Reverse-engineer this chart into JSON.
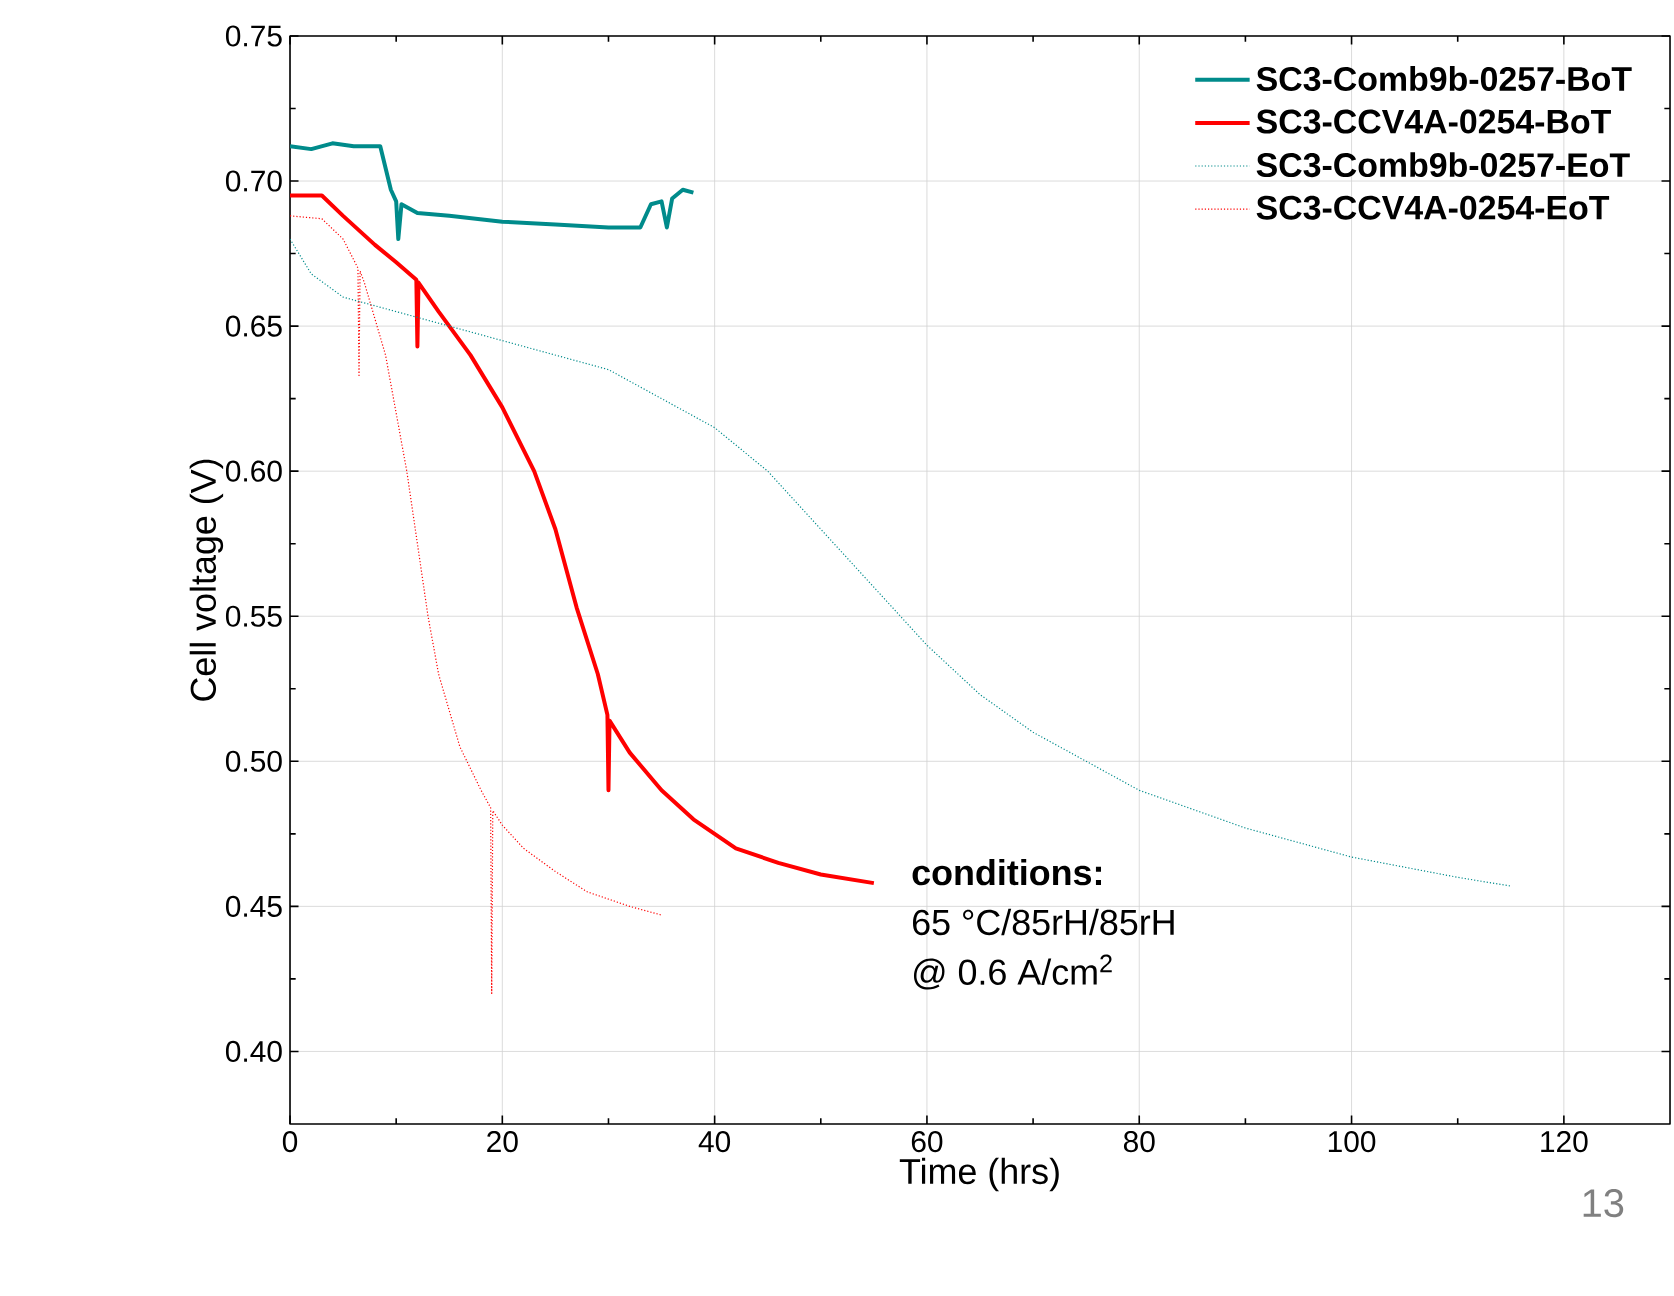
{
  "chart_data": {
    "type": "line",
    "xlabel": "Time (hrs)",
    "ylabel": "Cell voltage (V)",
    "xlim": [
      0,
      130
    ],
    "ylim": [
      0.375,
      0.75
    ],
    "xticks": [
      0,
      20,
      40,
      60,
      80,
      100,
      120
    ],
    "yticks": [
      {
        "value": 0.4,
        "label": "0.40"
      },
      {
        "value": 0.45,
        "label": "0.45"
      },
      {
        "value": 0.5,
        "label": "0.50"
      },
      {
        "value": 0.55,
        "label": "0.55"
      },
      {
        "value": 0.6,
        "label": "0.60"
      },
      {
        "value": 0.65,
        "label": "0.65"
      },
      {
        "value": 0.7,
        "label": "0.70"
      },
      {
        "value": 0.75,
        "label": "0.75"
      }
    ],
    "grid": true,
    "legend": "top right",
    "marker": "none",
    "series": [
      {
        "name": "SC3-Comb9b-0257-BoT",
        "color": "#008b8b",
        "line_style": "solid",
        "x": [
          0,
          2,
          4,
          6,
          8.5,
          9.5,
          10,
          10.2,
          10.5,
          12,
          15,
          20,
          25,
          30,
          33,
          34,
          35,
          35.5,
          36,
          37,
          38
        ],
        "values": [
          0.712,
          0.711,
          0.713,
          0.712,
          0.712,
          0.697,
          0.693,
          0.68,
          0.692,
          0.689,
          0.688,
          0.686,
          0.685,
          0.684,
          0.684,
          0.692,
          0.693,
          0.684,
          0.694,
          0.697,
          0.696
        ]
      },
      {
        "name": "SC3-CCV4A-0254-BoT",
        "color": "#ff0000",
        "line_style": "solid",
        "x": [
          0,
          3,
          5,
          8,
          10,
          11.9,
          12,
          12.1,
          14,
          17,
          20,
          23,
          25,
          27,
          29,
          29.9,
          30,
          30.1,
          32,
          35,
          38,
          42,
          46,
          50,
          55
        ],
        "values": [
          0.695,
          0.695,
          0.688,
          0.678,
          0.672,
          0.666,
          0.643,
          0.665,
          0.655,
          0.64,
          0.622,
          0.6,
          0.58,
          0.553,
          0.53,
          0.516,
          0.49,
          0.514,
          0.503,
          0.49,
          0.48,
          0.47,
          0.465,
          0.461,
          0.458
        ]
      },
      {
        "name": "SC3-Comb9b-0257-EoT",
        "color": "#008b8b",
        "line_style": "dotted",
        "x": [
          0,
          2,
          5,
          10,
          20,
          30,
          40,
          45,
          50,
          55,
          60,
          65,
          70,
          75,
          80,
          90,
          100,
          110,
          115
        ],
        "values": [
          0.68,
          0.668,
          0.66,
          0.655,
          0.645,
          0.635,
          0.615,
          0.6,
          0.58,
          0.56,
          0.54,
          0.523,
          0.51,
          0.5,
          0.49,
          0.477,
          0.467,
          0.46,
          0.457
        ]
      },
      {
        "name": "SC3-CCV4A-0254-EoT",
        "color": "#ff0000",
        "line_style": "dotted",
        "x": [
          0,
          3,
          5,
          6.4,
          6.5,
          6.6,
          7,
          9,
          10,
          11,
          12,
          13,
          14,
          16,
          18,
          18.9,
          19,
          19.1,
          20,
          22,
          25,
          28,
          32,
          35
        ],
        "values": [
          0.688,
          0.687,
          0.68,
          0.67,
          0.633,
          0.669,
          0.665,
          0.64,
          0.62,
          0.6,
          0.575,
          0.55,
          0.53,
          0.505,
          0.49,
          0.484,
          0.42,
          0.483,
          0.478,
          0.47,
          0.462,
          0.455,
          0.45,
          0.447
        ]
      }
    ],
    "annotations": [
      "**conditions:**",
      "65 °C/85rH/85rH",
      "@ 0.6 A/cm$^{2}$",
      "13"
    ]
  }
}
